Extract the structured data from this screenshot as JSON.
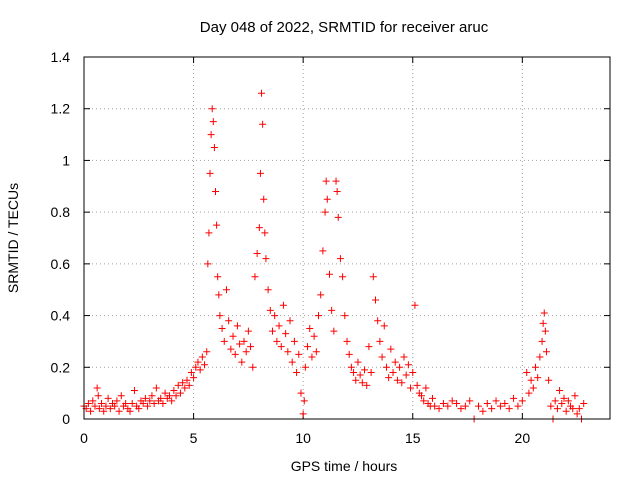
{
  "chart_data": {
    "type": "scatter",
    "title": "Day 048 of 2022, SRMTID for receiver aruc",
    "xlabel": "GPS time / hours",
    "ylabel": "SRMTID / TECUs",
    "xlim": [
      0,
      24
    ],
    "ylim": [
      0,
      1.4
    ],
    "xticks": [
      0,
      5,
      10,
      15,
      20
    ],
    "xtick_labels": [
      "0",
      "5",
      "10",
      "15",
      "20"
    ],
    "yticks": [
      0,
      0.2,
      0.4,
      0.6,
      0.8,
      1,
      1.2,
      1.4
    ],
    "ytick_labels": [
      "0",
      "0.2",
      "0.4",
      "0.6",
      "0.8",
      "1",
      "1.2",
      "1.4"
    ],
    "grid": true,
    "marker": "+",
    "color": "#ff0000",
    "series": [
      {
        "name": "SRMTID",
        "points": [
          [
            0.0,
            0.05
          ],
          [
            0.1,
            0.04
          ],
          [
            0.2,
            0.06
          ],
          [
            0.3,
            0.03
          ],
          [
            0.4,
            0.07
          ],
          [
            0.5,
            0.05
          ],
          [
            0.6,
            0.12
          ],
          [
            0.65,
            0.09
          ],
          [
            0.7,
            0.04
          ],
          [
            0.8,
            0.06
          ],
          [
            0.9,
            0.03
          ],
          [
            1.0,
            0.05
          ],
          [
            1.1,
            0.08
          ],
          [
            1.2,
            0.04
          ],
          [
            1.3,
            0.06
          ],
          [
            1.4,
            0.05
          ],
          [
            1.5,
            0.07
          ],
          [
            1.6,
            0.03
          ],
          [
            1.7,
            0.09
          ],
          [
            1.8,
            0.05
          ],
          [
            1.9,
            0.06
          ],
          [
            2.0,
            0.04
          ],
          [
            2.1,
            0.03
          ],
          [
            2.2,
            0.06
          ],
          [
            2.3,
            0.11
          ],
          [
            2.4,
            0.05
          ],
          [
            2.5,
            0.04
          ],
          [
            2.6,
            0.07
          ],
          [
            2.7,
            0.06
          ],
          [
            2.8,
            0.08
          ],
          [
            2.9,
            0.05
          ],
          [
            3.0,
            0.07
          ],
          [
            3.1,
            0.09
          ],
          [
            3.2,
            0.06
          ],
          [
            3.3,
            0.12
          ],
          [
            3.4,
            0.07
          ],
          [
            3.5,
            0.08
          ],
          [
            3.6,
            0.06
          ],
          [
            3.7,
            0.1
          ],
          [
            3.8,
            0.08
          ],
          [
            3.9,
            0.09
          ],
          [
            4.0,
            0.07
          ],
          [
            4.1,
            0.11
          ],
          [
            4.2,
            0.09
          ],
          [
            4.3,
            0.13
          ],
          [
            4.4,
            0.1
          ],
          [
            4.5,
            0.14
          ],
          [
            4.6,
            0.12
          ],
          [
            4.7,
            0.15
          ],
          [
            4.8,
            0.13
          ],
          [
            4.9,
            0.18
          ],
          [
            5.0,
            0.16
          ],
          [
            5.1,
            0.2
          ],
          [
            5.2,
            0.22
          ],
          [
            5.3,
            0.19
          ],
          [
            5.4,
            0.24
          ],
          [
            5.5,
            0.21
          ],
          [
            5.6,
            0.26
          ],
          [
            5.65,
            0.6
          ],
          [
            5.7,
            0.72
          ],
          [
            5.75,
            0.95
          ],
          [
            5.8,
            1.1
          ],
          [
            5.85,
            1.2
          ],
          [
            5.9,
            1.15
          ],
          [
            5.95,
            1.05
          ],
          [
            6.0,
            0.88
          ],
          [
            6.05,
            0.75
          ],
          [
            6.1,
            0.55
          ],
          [
            6.15,
            0.48
          ],
          [
            6.2,
            0.4
          ],
          [
            6.3,
            0.35
          ],
          [
            6.4,
            0.3
          ],
          [
            6.5,
            0.5
          ],
          [
            6.6,
            0.38
          ],
          [
            6.7,
            0.27
          ],
          [
            6.8,
            0.32
          ],
          [
            6.9,
            0.25
          ],
          [
            7.0,
            0.36
          ],
          [
            7.1,
            0.29
          ],
          [
            7.2,
            0.22
          ],
          [
            7.3,
            0.3
          ],
          [
            7.4,
            0.26
          ],
          [
            7.5,
            0.34
          ],
          [
            7.6,
            0.28
          ],
          [
            7.7,
            0.2
          ],
          [
            7.8,
            0.55
          ],
          [
            7.9,
            0.64
          ],
          [
            8.0,
            0.74
          ],
          [
            8.05,
            0.95
          ],
          [
            8.1,
            1.26
          ],
          [
            8.15,
            1.14
          ],
          [
            8.2,
            0.85
          ],
          [
            8.25,
            0.72
          ],
          [
            8.3,
            0.62
          ],
          [
            8.4,
            0.5
          ],
          [
            8.5,
            0.42
          ],
          [
            8.6,
            0.34
          ],
          [
            8.7,
            0.4
          ],
          [
            8.8,
            0.3
          ],
          [
            8.9,
            0.36
          ],
          [
            9.0,
            0.28
          ],
          [
            9.1,
            0.44
          ],
          [
            9.2,
            0.33
          ],
          [
            9.3,
            0.26
          ],
          [
            9.4,
            0.38
          ],
          [
            9.5,
            0.22
          ],
          [
            9.6,
            0.3
          ],
          [
            9.7,
            0.18
          ],
          [
            9.8,
            0.25
          ],
          [
            9.9,
            0.1
          ],
          [
            10.0,
            0.02
          ],
          [
            10.05,
            0.07
          ],
          [
            10.1,
            0.2
          ],
          [
            10.2,
            0.28
          ],
          [
            10.3,
            0.35
          ],
          [
            10.4,
            0.24
          ],
          [
            10.5,
            0.32
          ],
          [
            10.6,
            0.26
          ],
          [
            10.7,
            0.4
          ],
          [
            10.8,
            0.48
          ],
          [
            10.9,
            0.65
          ],
          [
            11.0,
            0.8
          ],
          [
            11.05,
            0.92
          ],
          [
            11.1,
            0.85
          ],
          [
            11.2,
            0.56
          ],
          [
            11.3,
            0.42
          ],
          [
            11.4,
            0.34
          ],
          [
            11.5,
            0.92
          ],
          [
            11.55,
            0.88
          ],
          [
            11.6,
            0.78
          ],
          [
            11.7,
            0.62
          ],
          [
            11.8,
            0.55
          ],
          [
            11.9,
            0.4
          ],
          [
            12.0,
            0.3
          ],
          [
            12.1,
            0.25
          ],
          [
            12.2,
            0.2
          ],
          [
            12.3,
            0.18
          ],
          [
            12.4,
            0.15
          ],
          [
            12.5,
            0.22
          ],
          [
            12.6,
            0.17
          ],
          [
            12.7,
            0.14
          ],
          [
            12.8,
            0.19
          ],
          [
            12.9,
            0.13
          ],
          [
            13.0,
            0.28
          ],
          [
            13.1,
            0.18
          ],
          [
            13.2,
            0.55
          ],
          [
            13.3,
            0.46
          ],
          [
            13.4,
            0.38
          ],
          [
            13.5,
            0.3
          ],
          [
            13.6,
            0.24
          ],
          [
            13.7,
            0.36
          ],
          [
            13.8,
            0.2
          ],
          [
            13.9,
            0.16
          ],
          [
            14.0,
            0.27
          ],
          [
            14.1,
            0.18
          ],
          [
            14.2,
            0.22
          ],
          [
            14.3,
            0.15
          ],
          [
            14.4,
            0.2
          ],
          [
            14.5,
            0.14
          ],
          [
            14.6,
            0.24
          ],
          [
            14.7,
            0.17
          ],
          [
            14.8,
            0.21
          ],
          [
            14.9,
            0.12
          ],
          [
            15.0,
            0.18
          ],
          [
            15.1,
            0.44
          ],
          [
            15.2,
            0.13
          ],
          [
            15.3,
            0.1
          ],
          [
            15.4,
            0.09
          ],
          [
            15.5,
            0.07
          ],
          [
            15.6,
            0.12
          ],
          [
            15.7,
            0.06
          ],
          [
            15.8,
            0.05
          ],
          [
            15.9,
            0.08
          ],
          [
            16.0,
            0.05
          ],
          [
            16.2,
            0.04
          ],
          [
            16.4,
            0.06
          ],
          [
            16.6,
            0.05
          ],
          [
            16.8,
            0.07
          ],
          [
            17.0,
            0.06
          ],
          [
            17.2,
            0.04
          ],
          [
            17.4,
            0.05
          ],
          [
            17.6,
            0.07
          ],
          [
            17.8,
            0.0
          ],
          [
            18.0,
            0.05
          ],
          [
            18.2,
            0.03
          ],
          [
            18.4,
            0.06
          ],
          [
            18.6,
            0.04
          ],
          [
            18.8,
            0.07
          ],
          [
            19.0,
            0.05
          ],
          [
            19.2,
            0.06
          ],
          [
            19.4,
            0.04
          ],
          [
            19.6,
            0.08
          ],
          [
            19.8,
            0.05
          ],
          [
            20.0,
            0.07
          ],
          [
            20.2,
            0.18
          ],
          [
            20.3,
            0.1
          ],
          [
            20.4,
            0.15
          ],
          [
            20.5,
            0.12
          ],
          [
            20.6,
            0.2
          ],
          [
            20.7,
            0.16
          ],
          [
            20.8,
            0.24
          ],
          [
            20.9,
            0.3
          ],
          [
            20.95,
            0.37
          ],
          [
            21.0,
            0.41
          ],
          [
            21.05,
            0.34
          ],
          [
            21.1,
            0.26
          ],
          [
            21.2,
            0.15
          ],
          [
            21.3,
            0.05
          ],
          [
            21.4,
            0.0
          ],
          [
            21.5,
            0.07
          ],
          [
            21.6,
            0.04
          ],
          [
            21.7,
            0.11
          ],
          [
            21.8,
            0.06
          ],
          [
            21.9,
            0.08
          ],
          [
            22.0,
            0.03
          ],
          [
            22.1,
            0.07
          ],
          [
            22.2,
            0.05
          ],
          [
            22.3,
            0.04
          ],
          [
            22.4,
            0.09
          ],
          [
            22.5,
            0.02
          ],
          [
            22.6,
            0.04
          ],
          [
            22.7,
            0.0
          ],
          [
            22.8,
            0.06
          ]
        ]
      }
    ]
  }
}
